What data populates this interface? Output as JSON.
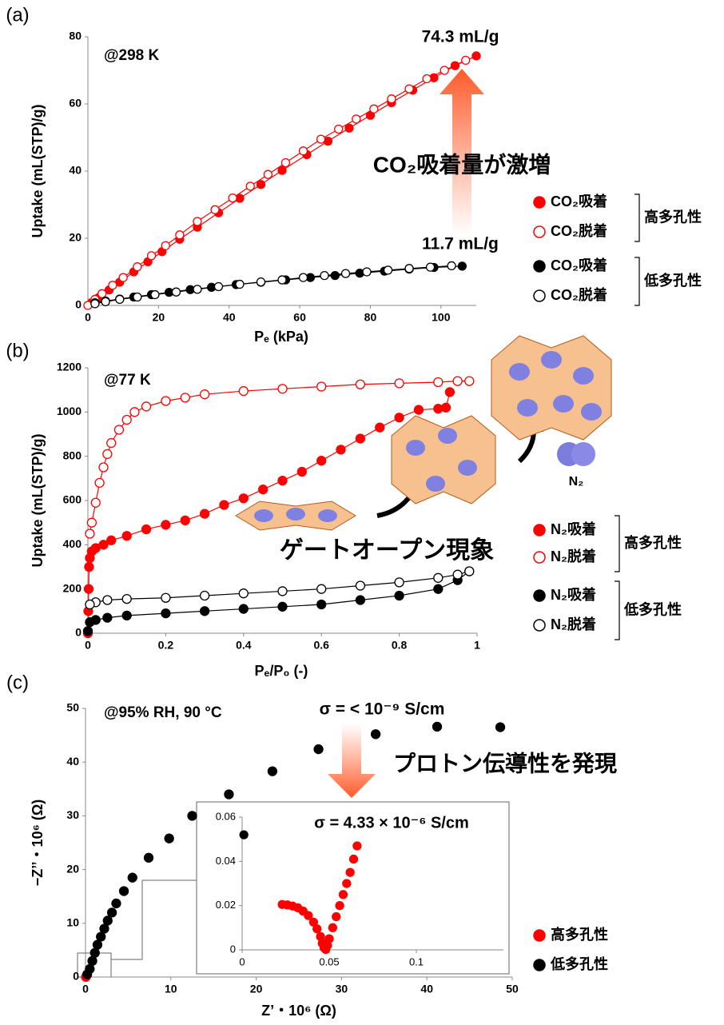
{
  "chart_data": [
    {
      "type": "line",
      "panel_label": "(a)",
      "x_label": "Pₑ (kPa)",
      "y_label": "Uptake (mL(STP)/g)",
      "xlim": [
        0,
        110
      ],
      "xticks": [
        0,
        20,
        40,
        60,
        80,
        100
      ],
      "ylim": [
        0,
        80
      ],
      "yticks": [
        0,
        20,
        40,
        60,
        80
      ],
      "annotations": [
        "@298 K",
        "74.3 mL/g",
        "11.7 mL/g",
        "CO₂吸着量が激増"
      ],
      "legend_groups": [
        "高多孔性",
        "低多孔性"
      ],
      "series": [
        {
          "name": "CO₂吸着",
          "color": "#ff0000",
          "filled": true,
          "x": [
            1,
            3,
            6,
            9,
            13,
            17,
            21,
            26,
            31,
            37,
            43,
            49,
            55,
            62,
            68,
            74,
            80,
            86,
            92,
            98,
            104,
            110
          ],
          "values": [
            0.8,
            2.3,
            4.6,
            6.9,
            10,
            13,
            16,
            19.7,
            23.3,
            27.6,
            31.9,
            36,
            40.2,
            44.9,
            48.9,
            52.8,
            56.6,
            60.4,
            64.1,
            67.8,
            71.4,
            74.3
          ]
        },
        {
          "name": "CO₂脱着",
          "color": "#ff0000",
          "filled": false,
          "x": [
            107,
            101,
            96,
            91,
            86,
            81,
            76,
            71,
            66,
            61,
            56,
            51,
            46,
            41,
            36,
            31,
            26,
            22,
            18,
            14,
            10,
            7,
            4,
            2,
            0
          ],
          "values": [
            73,
            70,
            67.5,
            64.5,
            61.5,
            58.5,
            55.5,
            52.5,
            49.5,
            46,
            42.5,
            39,
            35.5,
            32,
            28.5,
            25,
            21,
            17.8,
            14.8,
            11.5,
            8.3,
            6,
            3.5,
            1.8,
            0
          ]
        },
        {
          "name": "CO₂吸着",
          "color": "#000000",
          "filled": true,
          "x": [
            2,
            5,
            9,
            13,
            18,
            23,
            29,
            35,
            42,
            49,
            56,
            63,
            70,
            77,
            84,
            91,
            98,
            106
          ],
          "values": [
            0.8,
            1.3,
            1.9,
            2.5,
            3.2,
            3.9,
            4.7,
            5.4,
            6.2,
            6.9,
            7.6,
            8.3,
            8.9,
            9.6,
            10.2,
            10.8,
            11.3,
            11.7
          ]
        },
        {
          "name": "CO₂脱着",
          "color": "#000000",
          "filled": false,
          "x": [
            103,
            97,
            91,
            85,
            79,
            73,
            67,
            61,
            55,
            49,
            43,
            37,
            31,
            25,
            19,
            14,
            9,
            5,
            2
          ],
          "values": [
            11.8,
            11.4,
            11,
            10.5,
            10,
            9.5,
            8.9,
            8.3,
            7.6,
            7,
            6.3,
            5.6,
            4.8,
            4,
            3.2,
            2.5,
            1.8,
            1.1,
            0.5
          ]
        }
      ]
    },
    {
      "type": "line",
      "panel_label": "(b)",
      "x_label": "Pₑ/P₀ (-)",
      "y_label": "Uptake (mL(STP)/g)",
      "xlim": [
        0,
        1
      ],
      "xticks": [
        0,
        0.2,
        0.4,
        0.6,
        0.8,
        1
      ],
      "ylim": [
        0,
        1200
      ],
      "yticks": [
        0,
        200,
        400,
        600,
        800,
        1000,
        1200
      ],
      "annotations": [
        "@77 K",
        "ゲートオープン現象",
        "N₂"
      ],
      "legend_groups": [
        "高多孔性",
        "低多孔性"
      ],
      "series": [
        {
          "name": "N₂吸着",
          "color": "#ff0000",
          "filled": true,
          "x": [
            0,
            0.001,
            0.002,
            0.003,
            0.005,
            0.01,
            0.02,
            0.04,
            0.06,
            0.1,
            0.15,
            0.2,
            0.25,
            0.3,
            0.35,
            0.4,
            0.45,
            0.5,
            0.55,
            0.6,
            0.65,
            0.7,
            0.75,
            0.8,
            0.85,
            0.9,
            0.92,
            0.93
          ],
          "values": [
            0,
            100,
            200,
            300,
            340,
            370,
            385,
            400,
            420,
            440,
            470,
            490,
            510,
            540,
            580,
            610,
            650,
            690,
            730,
            780,
            830,
            880,
            930,
            975,
            1010,
            1015,
            1020,
            1090
          ]
        },
        {
          "name": "N₂脱着",
          "color": "#ff0000",
          "filled": false,
          "x": [
            0.98,
            0.95,
            0.9,
            0.8,
            0.7,
            0.6,
            0.5,
            0.4,
            0.3,
            0.25,
            0.2,
            0.15,
            0.12,
            0.1,
            0.08,
            0.06,
            0.05,
            0.04,
            0.03,
            0.02,
            0.01,
            0.005
          ],
          "values": [
            1140,
            1140,
            1135,
            1130,
            1125,
            1115,
            1105,
            1095,
            1080,
            1065,
            1050,
            1025,
            1000,
            965,
            920,
            860,
            810,
            750,
            680,
            590,
            500,
            450
          ]
        },
        {
          "name": "N₂吸着",
          "color": "#000000",
          "filled": true,
          "x": [
            0,
            0.005,
            0.02,
            0.05,
            0.1,
            0.2,
            0.3,
            0.4,
            0.5,
            0.6,
            0.7,
            0.8,
            0.9,
            0.95,
            0.98
          ],
          "values": [
            10,
            50,
            60,
            70,
            80,
            90,
            100,
            110,
            120,
            130,
            150,
            170,
            200,
            240,
            280
          ]
        },
        {
          "name": "N₂脱着",
          "color": "#000000",
          "filled": false,
          "x": [
            0.98,
            0.95,
            0.9,
            0.8,
            0.7,
            0.6,
            0.5,
            0.4,
            0.3,
            0.2,
            0.1,
            0.05,
            0.02,
            0.005
          ],
          "values": [
            280,
            265,
            250,
            230,
            215,
            200,
            190,
            180,
            170,
            160,
            155,
            150,
            140,
            130
          ]
        }
      ]
    },
    {
      "type": "scatter",
      "panel_label": "(c)",
      "x_label": "Z’・10⁶ (Ω)",
      "y_label": "−Z’’・10⁶ (Ω)",
      "xlim": [
        0,
        50
      ],
      "xticks": [
        0,
        10,
        20,
        30,
        40,
        50
      ],
      "ylim": [
        0,
        50
      ],
      "yticks": [
        0,
        10,
        20,
        30,
        40,
        50
      ],
      "annotations": [
        "@95% RH, 90 °C",
        "σ = < 10⁻⁹ S/cm",
        "プロトン伝導性を発現",
        "σ = 4.33 × 10⁻⁶ S/cm"
      ],
      "series": [
        {
          "name": "高多孔性",
          "color": "#ff0000",
          "filled": true,
          "x": [
            0.05
          ],
          "values": [
            0.02
          ]
        },
        {
          "name": "低多孔性",
          "color": "#000000",
          "filled": true,
          "x": [
            0.2,
            0.5,
            0.8,
            1.1,
            1.4,
            1.8,
            2.2,
            2.6,
            3.1,
            3.6,
            4.5,
            5.5,
            7.4,
            9.8,
            12.5,
            16.8,
            21.9,
            27.3,
            34,
            41.2,
            48.6
          ],
          "values": [
            0.5,
            1.5,
            3,
            4.5,
            6,
            7.5,
            9,
            10.5,
            12,
            13.7,
            16,
            18.5,
            22.2,
            25.8,
            30,
            34,
            38.3,
            42.4,
            45.2,
            46.6,
            46.5
          ]
        }
      ]
    },
    {
      "type": "scatter",
      "xlim": [
        0,
        0.15
      ],
      "xticks": [
        0,
        0.05,
        0.1
      ],
      "ylim": [
        0,
        0.06
      ],
      "yticks": [
        0,
        0.02,
        0.04,
        0.06
      ],
      "series": [
        {
          "color": "#ff0000",
          "filled": true,
          "x": [
            0.023,
            0.026,
            0.029,
            0.032,
            0.035,
            0.038,
            0.041,
            0.043,
            0.045,
            0.046,
            0.047,
            0.048,
            0.049,
            0.05,
            0.052,
            0.054,
            0.056,
            0.058,
            0.06,
            0.062,
            0.064,
            0.066
          ],
          "values": [
            0.0205,
            0.0203,
            0.0198,
            0.019,
            0.0175,
            0.0155,
            0.0125,
            0.0095,
            0.006,
            0.003,
            0.001,
            0.0002,
            0.002,
            0.005,
            0.01,
            0.015,
            0.02,
            0.025,
            0.03,
            0.035,
            0.041,
            0.047
          ]
        },
        {
          "color": "#000000",
          "filled": true,
          "x": [
            0.001
          ],
          "values": [
            0.052
          ]
        }
      ]
    }
  ]
}
